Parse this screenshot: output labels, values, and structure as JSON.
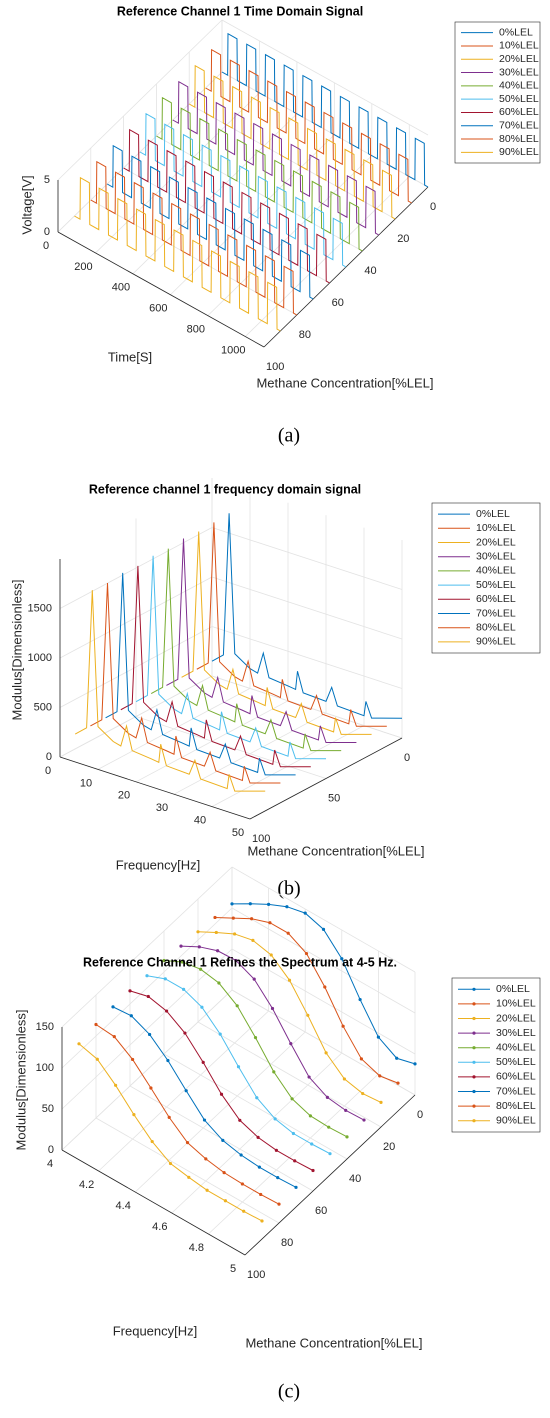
{
  "chart_data": [
    {
      "type": "line3d",
      "title": "Reference Channel 1 Time Domain Signal",
      "caption": "(a)",
      "xlabel": "Time[S]",
      "ylabel": "Methane Concentration[%LEL]",
      "zlabel": "Voltage[V]",
      "xlim": [
        0,
        1100
      ],
      "xticks": [
        0,
        200,
        400,
        600,
        800,
        1000
      ],
      "ylim": [
        0,
        100
      ],
      "yticks": [
        0,
        20,
        40,
        60,
        80,
        100
      ],
      "zlim": [
        0,
        5
      ],
      "zticks": [
        0,
        5
      ],
      "grid": true,
      "markers": false,
      "x": [
        0,
        30,
        32,
        80,
        82,
        130,
        132,
        180,
        182,
        230,
        232,
        280,
        282,
        330,
        332,
        380,
        382,
        430,
        432,
        480,
        482,
        530,
        532,
        580,
        582,
        630,
        632,
        680,
        682,
        730,
        732,
        780,
        782,
        830,
        832,
        880,
        882,
        930,
        932,
        980,
        982,
        1030,
        1032,
        1080,
        1082,
        1100
      ],
      "series": [
        {
          "name": "0%LEL",
          "y": 0,
          "color": "#0072BD",
          "values": [
            0,
            0,
            4,
            4,
            0,
            0,
            4,
            4,
            0,
            0,
            4,
            4,
            0,
            0,
            4,
            4,
            0,
            0,
            4,
            4,
            0,
            0,
            4,
            4,
            0,
            0,
            4,
            4,
            0,
            0,
            4,
            4,
            0,
            0,
            4,
            4,
            0,
            0,
            4,
            4,
            0,
            0,
            4,
            4,
            0,
            0
          ]
        },
        {
          "name": "10%LEL",
          "y": 10,
          "color": "#D95319",
          "values": [
            0,
            0,
            4,
            4,
            0,
            0,
            4,
            4,
            0,
            0,
            4,
            4,
            0,
            0,
            4,
            4,
            0,
            0,
            4,
            4,
            0,
            0,
            4,
            4,
            0,
            0,
            4,
            4,
            0,
            0,
            4,
            4,
            0,
            0,
            4,
            4,
            0,
            0,
            4,
            4,
            0,
            0,
            4,
            4,
            0,
            0
          ]
        },
        {
          "name": "20%LEL",
          "y": 20,
          "color": "#EDB120",
          "values": [
            0,
            0,
            4,
            4,
            0,
            0,
            4,
            4,
            0,
            0,
            4,
            4,
            0,
            0,
            4,
            4,
            0,
            0,
            4,
            4,
            0,
            0,
            4,
            4,
            0,
            0,
            4,
            4,
            0,
            0,
            4,
            4,
            0,
            0,
            4,
            4,
            0,
            0,
            4,
            4,
            0,
            0,
            4,
            4,
            0,
            0
          ]
        },
        {
          "name": "30%LEL",
          "y": 30,
          "color": "#7E2F8E",
          "values": [
            0,
            0,
            4,
            4,
            0,
            0,
            4,
            4,
            0,
            0,
            4,
            4,
            0,
            0,
            4,
            4,
            0,
            0,
            4,
            4,
            0,
            0,
            4,
            4,
            0,
            0,
            4,
            4,
            0,
            0,
            4,
            4,
            0,
            0,
            4,
            4,
            0,
            0,
            4,
            4,
            0,
            0,
            4,
            4,
            0,
            0
          ]
        },
        {
          "name": "40%LEL",
          "y": 40,
          "color": "#77AC30",
          "values": [
            0,
            0,
            4,
            4,
            0,
            0,
            4,
            4,
            0,
            0,
            4,
            4,
            0,
            0,
            4,
            4,
            0,
            0,
            4,
            4,
            0,
            0,
            4,
            4,
            0,
            0,
            4,
            4,
            0,
            0,
            4,
            4,
            0,
            0,
            4,
            4,
            0,
            0,
            4,
            4,
            0,
            0,
            4,
            4,
            0,
            0
          ]
        },
        {
          "name": "50%LEL",
          "y": 50,
          "color": "#4DBEEE",
          "values": [
            0,
            0,
            4,
            4,
            0,
            0,
            4,
            4,
            0,
            0,
            4,
            4,
            0,
            0,
            4,
            4,
            0,
            0,
            4,
            4,
            0,
            0,
            4,
            4,
            0,
            0,
            4,
            4,
            0,
            0,
            4,
            4,
            0,
            0,
            4,
            4,
            0,
            0,
            4,
            4,
            0,
            0,
            4,
            4,
            0,
            0
          ]
        },
        {
          "name": "60%LEL",
          "y": 60,
          "color": "#A2142F",
          "values": [
            0,
            0,
            4,
            4,
            0,
            0,
            4,
            4,
            0,
            0,
            4,
            4,
            0,
            0,
            4,
            4,
            0,
            0,
            4,
            4,
            0,
            0,
            4,
            4,
            0,
            0,
            4,
            4,
            0,
            0,
            4,
            4,
            0,
            0,
            4,
            4,
            0,
            0,
            4,
            4,
            0,
            0,
            4,
            4,
            0,
            0
          ]
        },
        {
          "name": "70%LEL",
          "y": 70,
          "color": "#0072BD",
          "values": [
            0,
            0,
            4,
            4,
            0,
            0,
            4,
            4,
            0,
            0,
            4,
            4,
            0,
            0,
            4,
            4,
            0,
            0,
            4,
            4,
            0,
            0,
            4,
            4,
            0,
            0,
            4,
            4,
            0,
            0,
            4,
            4,
            0,
            0,
            4,
            4,
            0,
            0,
            4,
            4,
            0,
            0,
            4,
            4,
            0,
            0
          ]
        },
        {
          "name": "80%LEL",
          "y": 80,
          "color": "#D95319",
          "values": [
            0,
            0,
            4,
            4,
            0,
            0,
            4,
            4,
            0,
            0,
            4,
            4,
            0,
            0,
            4,
            4,
            0,
            0,
            4,
            4,
            0,
            0,
            4,
            4,
            0,
            0,
            4,
            4,
            0,
            0,
            4,
            4,
            0,
            0,
            4,
            4,
            0,
            0,
            4,
            4,
            0,
            0,
            4,
            4,
            0,
            0
          ]
        },
        {
          "name": "90%LEL",
          "y": 90,
          "color": "#EDB120",
          "values": [
            0,
            0,
            4,
            4,
            0,
            0,
            4,
            4,
            0,
            0,
            4,
            4,
            0,
            0,
            4,
            4,
            0,
            0,
            4,
            4,
            0,
            0,
            4,
            4,
            0,
            0,
            4,
            4,
            0,
            0,
            4,
            4,
            0,
            0,
            4,
            4,
            0,
            0,
            4,
            4,
            0,
            0,
            4,
            4,
            0,
            0
          ]
        }
      ]
    },
    {
      "type": "line3d",
      "title": "Reference channel 1 frequency domain signal",
      "caption": "(b)",
      "xlabel": "Frequency[Hz]",
      "ylabel": "Methane Concentration[%LEL]",
      "zlabel": "Modulus[Dimensionless]",
      "xlim": [
        0,
        50
      ],
      "xticks": [
        0,
        10,
        20,
        30,
        40,
        50
      ],
      "ylim": [
        0,
        100
      ],
      "yticks": [
        0,
        50,
        100
      ],
      "zlim": [
        0,
        2000
      ],
      "zticks": [
        0,
        500,
        1000,
        1500
      ],
      "grid": true,
      "markers": false,
      "x": [
        0,
        3,
        4.5,
        6,
        10,
        12,
        13.5,
        15,
        20,
        22,
        22.5,
        24,
        30,
        31.5,
        33,
        40,
        40.5,
        42,
        50
      ],
      "series": [
        {
          "name": "0%LEL",
          "y": 0,
          "color": "#0072BD",
          "values": [
            150,
            250,
            1700,
            300,
            200,
            180,
            400,
            170,
            150,
            140,
            330,
            130,
            120,
            280,
            110,
            100,
            250,
            100,
            200
          ]
        },
        {
          "name": "10%LEL",
          "y": 10,
          "color": "#D95319",
          "values": [
            150,
            250,
            1690,
            300,
            200,
            180,
            400,
            170,
            150,
            140,
            330,
            130,
            120,
            280,
            110,
            100,
            250,
            100,
            200
          ]
        },
        {
          "name": "20%LEL",
          "y": 20,
          "color": "#EDB120",
          "values": [
            150,
            250,
            1680,
            300,
            200,
            180,
            400,
            170,
            150,
            140,
            330,
            130,
            120,
            280,
            110,
            100,
            250,
            100,
            200
          ]
        },
        {
          "name": "30%LEL",
          "y": 30,
          "color": "#7E2F8E",
          "values": [
            150,
            250,
            1690,
            300,
            200,
            180,
            400,
            170,
            150,
            140,
            330,
            130,
            120,
            280,
            110,
            100,
            250,
            100,
            200
          ]
        },
        {
          "name": "40%LEL",
          "y": 40,
          "color": "#77AC30",
          "values": [
            150,
            250,
            1670,
            300,
            200,
            180,
            400,
            170,
            150,
            140,
            330,
            130,
            120,
            280,
            110,
            100,
            250,
            100,
            200
          ]
        },
        {
          "name": "50%LEL",
          "y": 50,
          "color": "#4DBEEE",
          "values": [
            150,
            250,
            1680,
            300,
            200,
            180,
            400,
            170,
            150,
            140,
            330,
            130,
            120,
            280,
            110,
            100,
            250,
            100,
            200
          ]
        },
        {
          "name": "60%LEL",
          "y": 60,
          "color": "#A2142F",
          "values": [
            150,
            250,
            1660,
            300,
            200,
            180,
            400,
            170,
            150,
            140,
            330,
            130,
            120,
            280,
            110,
            100,
            250,
            100,
            200
          ]
        },
        {
          "name": "70%LEL",
          "y": 70,
          "color": "#0072BD",
          "values": [
            150,
            250,
            1670,
            300,
            200,
            180,
            400,
            170,
            150,
            140,
            330,
            130,
            120,
            280,
            110,
            100,
            250,
            100,
            200
          ]
        },
        {
          "name": "80%LEL",
          "y": 80,
          "color": "#D95319",
          "values": [
            150,
            250,
            1650,
            300,
            200,
            180,
            400,
            170,
            150,
            140,
            330,
            130,
            120,
            280,
            110,
            100,
            250,
            100,
            200
          ]
        },
        {
          "name": "90%LEL",
          "y": 90,
          "color": "#EDB120",
          "values": [
            150,
            250,
            1660,
            300,
            200,
            180,
            400,
            170,
            150,
            140,
            330,
            130,
            120,
            280,
            110,
            100,
            250,
            100,
            200
          ]
        }
      ]
    },
    {
      "type": "line3d",
      "title": "Reference Channel 1 Refines the Spectrum at 4-5 Hz.",
      "caption": "(c)",
      "xlabel": "Frequency[Hz]",
      "ylabel": "Methane Concentration[%LEL]",
      "zlabel": "Modulus[Dimensionless]",
      "xlim": [
        4,
        5
      ],
      "xticks": [
        4,
        4.2,
        4.4,
        4.6,
        4.8,
        5
      ],
      "ylim": [
        0,
        100
      ],
      "yticks": [
        0,
        20,
        40,
        60,
        80,
        100
      ],
      "zlim": [
        0,
        150
      ],
      "zticks": [
        0,
        50,
        100,
        150
      ],
      "grid": true,
      "markers": true,
      "x": [
        4,
        4.1,
        4.2,
        4.3,
        4.4,
        4.5,
        4.6,
        4.7,
        4.8,
        4.9,
        5
      ],
      "series": [
        {
          "name": "0%LEL",
          "y": 0,
          "color": "#0072BD",
          "values": [
            105,
            118,
            130,
            140,
            145,
            138,
            115,
            78,
            45,
            32,
            38
          ]
        },
        {
          "name": "10%LEL",
          "y": 10,
          "color": "#D95319",
          "values": [
            108,
            120,
            132,
            140,
            140,
            128,
            100,
            65,
            38,
            30,
            34
          ]
        },
        {
          "name": "20%LEL",
          "y": 20,
          "color": "#EDB120",
          "values": [
            110,
            122,
            133,
            138,
            133,
            115,
            85,
            52,
            33,
            28,
            30
          ]
        },
        {
          "name": "30%LEL",
          "y": 30,
          "color": "#7E2F8E",
          "values": [
            112,
            124,
            132,
            133,
            123,
            100,
            70,
            42,
            30,
            27,
            28
          ]
        },
        {
          "name": "40%LEL",
          "y": 40,
          "color": "#77AC30",
          "values": [
            114,
            125,
            129,
            125,
            110,
            84,
            55,
            35,
            27,
            26,
            27
          ]
        },
        {
          "name": "50%LEL",
          "y": 50,
          "color": "#4DBEEE",
          "values": [
            115,
            124,
            124,
            115,
            95,
            68,
            43,
            30,
            25,
            25,
            26
          ]
        },
        {
          "name": "60%LEL",
          "y": 60,
          "color": "#A2142F",
          "values": [
            116,
            122,
            117,
            103,
            80,
            54,
            35,
            27,
            24,
            24,
            25
          ]
        },
        {
          "name": "70%LEL",
          "y": 70,
          "color": "#0072BD",
          "values": [
            116,
            118,
            108,
            89,
            65,
            42,
            30,
            25,
            23,
            23,
            24
          ]
        },
        {
          "name": "80%LEL",
          "y": 80,
          "color": "#D95319",
          "values": [
            114,
            112,
            97,
            75,
            52,
            34,
            27,
            23,
            22,
            22,
            23
          ]
        },
        {
          "name": "90%LEL",
          "y": 90,
          "color": "#EDB120",
          "values": [
            110,
            104,
            85,
            62,
            42,
            28,
            24,
            21,
            21,
            21,
            22
          ]
        }
      ]
    }
  ]
}
